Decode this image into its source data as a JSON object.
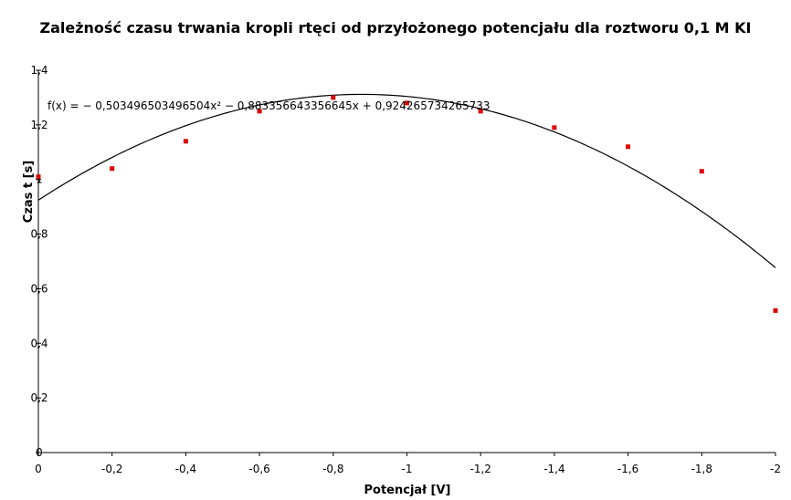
{
  "chart_data": {
    "type": "scatter",
    "title": "Zależność czasu trwania kropli rtęci od przyłożonego potencjału dla roztworu 0,1 M KI",
    "xlabel": "Potencjał [V]",
    "ylabel": "Czas t [s]",
    "x_reversed": true,
    "xlim": [
      0,
      -2
    ],
    "ylim": [
      0,
      1.4
    ],
    "x_ticks": [
      0,
      -0.2,
      -0.4,
      -0.6,
      -0.8,
      -1,
      -1.2,
      -1.4,
      -1.6,
      -1.8,
      -2
    ],
    "x_tick_labels": [
      "0",
      "-0,2",
      "-0,4",
      "-0,6",
      "-0,8",
      "-1",
      "-1,2",
      "-1,4",
      "-1,6",
      "-1,8",
      "-2"
    ],
    "y_ticks": [
      0,
      0.2,
      0.4,
      0.6,
      0.8,
      1,
      1.2,
      1.4
    ],
    "y_tick_labels": [
      "0",
      "0,2",
      "0,4",
      "0,6",
      "0,8",
      "1",
      "1,2",
      "1,4"
    ],
    "grid": false,
    "legend": false,
    "series": [
      {
        "x": [
          0,
          -0.2,
          -0.4,
          -0.6,
          -0.8,
          -1.0,
          -1.2,
          -1.4,
          -1.6,
          -1.8,
          -2.0
        ],
        "y": [
          1.01,
          1.04,
          1.14,
          1.25,
          1.3,
          1.28,
          1.25,
          1.19,
          1.12,
          1.03,
          0.52
        ],
        "color": "#dd0000"
      }
    ],
    "trendline": {
      "type": "polynomial",
      "equation": "f(x) = − 0,503496503496504x² − 0,883356643356645x + 0,924265734265733",
      "coefficients": {
        "a": -0.503496503496504,
        "b": -0.883356643356645,
        "c": 0.924265734265733
      },
      "color": "#000000"
    }
  }
}
